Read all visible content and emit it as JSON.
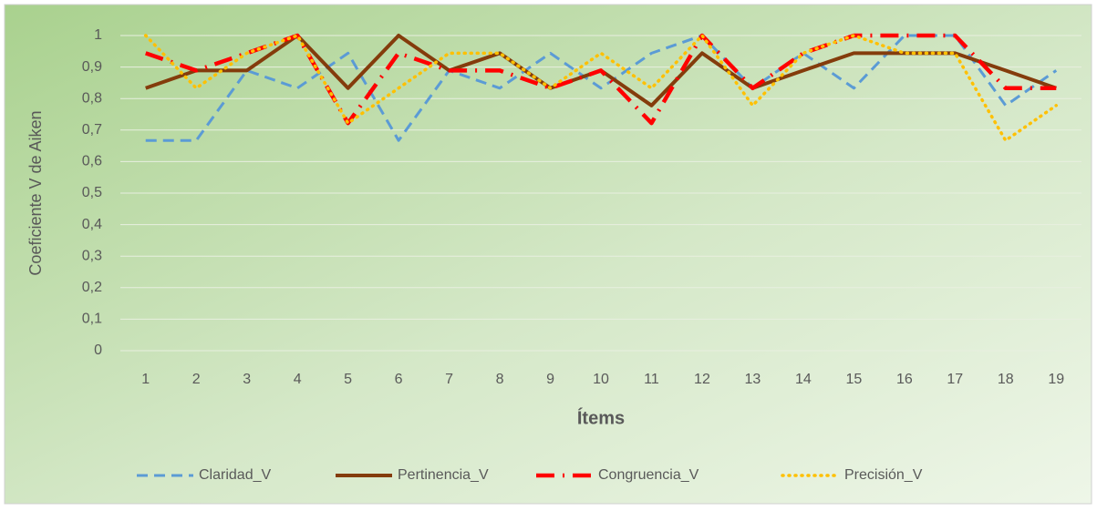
{
  "chart_data": {
    "type": "line",
    "y_label": "Coeficiente V de Aiken",
    "x_label": "Ítems",
    "categories": [
      "1",
      "2",
      "3",
      "4",
      "5",
      "6",
      "7",
      "8",
      "9",
      "10",
      "11",
      "12",
      "13",
      "14",
      "15",
      "16",
      "17",
      "18",
      "19"
    ],
    "series": [
      {
        "name": "Claridad_V",
        "color": "#5b9bd5",
        "values": [
          0.667,
          0.667,
          0.889,
          0.833,
          0.944,
          0.667,
          0.889,
          0.833,
          0.944,
          0.833,
          0.944,
          1,
          0.833,
          0.944,
          0.833,
          1,
          1,
          0.778,
          0.889
        ]
      },
      {
        "name": "Pertinencia_V",
        "color": "#843c0c",
        "values": [
          0.833,
          0.889,
          0.889,
          1,
          0.833,
          1,
          0.889,
          0.944,
          0.833,
          0.889,
          0.778,
          0.944,
          0.833,
          0.889,
          0.944,
          0.944,
          0.944,
          0.889,
          0.833
        ]
      },
      {
        "name": "Congruencia_V",
        "color": "#ff0000",
        "values": [
          0.944,
          0.889,
          0.944,
          1,
          0.722,
          0.944,
          0.889,
          0.889,
          0.833,
          0.889,
          0.722,
          1,
          0.833,
          0.944,
          1,
          1,
          1,
          0.833,
          0.833
        ]
      },
      {
        "name": "Precisión_V",
        "color": "#ffc000",
        "values": [
          1,
          0.833,
          0.944,
          1,
          0.722,
          0.833,
          0.944,
          0.944,
          0.833,
          0.944,
          0.833,
          1,
          0.778,
          0.944,
          1,
          0.944,
          0.944,
          0.667,
          0.778
        ]
      }
    ],
    "ylim": [
      0,
      1
    ],
    "yticks": [
      0,
      {
        "value": 0.1,
        "label": "0,1"
      },
      {
        "value": 0.2,
        "label": "0,2"
      },
      {
        "value": 0.3,
        "label": "0,3"
      },
      {
        "value": 0.4,
        "label": "0,4"
      },
      {
        "value": 0.5,
        "label": "0,5"
      },
      {
        "value": 0.6,
        "label": "0,6"
      },
      {
        "value": 0.7,
        "label": "0,7"
      },
      {
        "value": 0.8,
        "label": "0,8"
      },
      {
        "value": 0.9,
        "label": "0,9"
      },
      1
    ],
    "grid": true,
    "legend": "bottom"
  }
}
